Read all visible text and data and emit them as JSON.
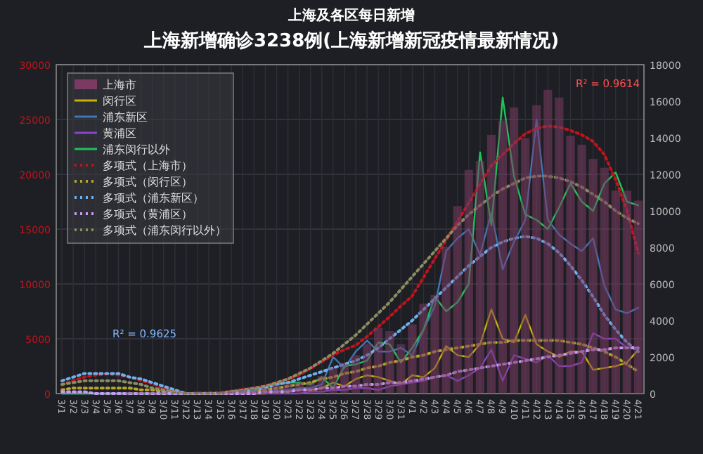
{
  "chart_data": {
    "type": "bar",
    "title": "上海及各区每日新增",
    "annotations": [
      "上海新增确诊3238例(上海新增新冠疫情最新情况)",
      "R² = 0.9614",
      "R² = 0.9625"
    ],
    "categories": [
      "3/1",
      "3/2",
      "3/3",
      "3/4",
      "3/5",
      "3/6",
      "3/7",
      "3/8",
      "3/9",
      "3/10",
      "3/11",
      "3/12",
      "3/13",
      "3/14",
      "3/15",
      "3/16",
      "3/17",
      "3/18",
      "3/19",
      "3/20",
      "3/21",
      "3/22",
      "3/23",
      "3/24",
      "3/25",
      "3/26",
      "3/27",
      "3/28",
      "3/29",
      "3/30",
      "3/31",
      "4/1",
      "4/2",
      "4/3",
      "4/4",
      "4/5",
      "4/6",
      "4/7",
      "4/8",
      "4/9",
      "4/10",
      "4/11",
      "4/12",
      "4/13",
      "4/14",
      "4/15",
      "4/16",
      "4/17",
      "4/18",
      "4/19",
      "4/20",
      "4/21"
    ],
    "series": [
      {
        "name": "上海市",
        "color": "#7a3a62",
        "values": [
          0,
          0,
          0,
          0,
          0,
          0,
          100,
          100,
          100,
          100,
          100,
          100,
          200,
          100,
          200,
          200,
          300,
          400,
          500,
          800,
          900,
          1000,
          1000,
          1600,
          2300,
          2700,
          3500,
          4500,
          6000,
          5700,
          4500,
          6300,
          8200,
          9000,
          13400,
          17100,
          20400,
          21200,
          23600,
          24900,
          26100,
          23300,
          26300,
          27700,
          27000,
          23500,
          22700,
          21400,
          20600,
          18500,
          18500,
          17600
        ]
      },
      {
        "name": "闵行区",
        "type": "line",
        "axis": "y2",
        "color": "#c8b400",
        "values": [
          null,
          null,
          null,
          null,
          null,
          0,
          0,
          0,
          0,
          0,
          0,
          0,
          0,
          0,
          0,
          0,
          0,
          0,
          0,
          100,
          100,
          200,
          200,
          300,
          600,
          400,
          800,
          1000,
          900,
          700,
          500,
          1000,
          900,
          1400,
          2600,
          2100,
          2000,
          2700,
          4600,
          3000,
          2800,
          4300,
          2700,
          2300,
          2000,
          2300,
          2300,
          1300,
          1400,
          1500,
          1700,
          2400
        ]
      },
      {
        "name": "浦东新区",
        "type": "line",
        "axis": "y2",
        "color": "#3f77b8",
        "values": [
          null,
          null,
          null,
          null,
          null,
          null,
          null,
          null,
          null,
          0,
          0,
          0,
          0,
          0,
          0,
          0,
          0,
          100,
          100,
          200,
          200,
          300,
          300,
          500,
          2000,
          1400,
          2300,
          2900,
          2300,
          2300,
          2500,
          2100,
          3500,
          4800,
          7800,
          8500,
          9000,
          7600,
          9900,
          6800,
          8300,
          9500,
          15000,
          9500,
          8700,
          8200,
          7800,
          8500,
          5900,
          4600,
          4400,
          4700
        ]
      },
      {
        "name": "黄浦区",
        "type": "line",
        "axis": "y2",
        "color": "#8a45c8",
        "values": [
          0,
          0,
          0,
          0,
          0,
          0,
          0,
          0,
          0,
          0,
          0,
          0,
          0,
          0,
          0,
          0,
          0,
          0,
          0,
          0,
          0,
          0,
          100,
          100,
          200,
          200,
          300,
          300,
          200,
          400,
          500,
          600,
          700,
          900,
          1000,
          700,
          1000,
          1400,
          2400,
          700,
          2100,
          1900,
          1700,
          2100,
          1500,
          1500,
          1700,
          3300,
          3000,
          3000,
          2500,
          2500
        ]
      },
      {
        "name": "浦东闵行以外",
        "type": "line",
        "axis": "y2",
        "color": "#1fc35c",
        "values": [
          0,
          0,
          0,
          0,
          0,
          0,
          0,
          0,
          0,
          0,
          0,
          0,
          0,
          0,
          0,
          100,
          100,
          200,
          400,
          500,
          600,
          600,
          500,
          900,
          300,
          1500,
          1600,
          1800,
          2800,
          2700,
          1700,
          2500,
          3500,
          5300,
          4500,
          5000,
          6000,
          13200,
          9200,
          16200,
          11900,
          9800,
          9500,
          9000,
          10200,
          11500,
          10500,
          10000,
          11500,
          12100,
          10500,
          10300
        ]
      },
      {
        "name": "多项式（上海市）",
        "type": "line",
        "line_style": "dotted",
        "color": "#c0141c",
        "values": [
          800,
          1200,
          1500,
          1700,
          1800,
          1700,
          1500,
          1200,
          900,
          500,
          200,
          0,
          0,
          100,
          100,
          200,
          400,
          500,
          700,
          1000,
          1300,
          1700,
          2300,
          2900,
          3500,
          4000,
          4400,
          5200,
          6100,
          7000,
          8000,
          8900,
          10600,
          12300,
          14000,
          15700,
          17400,
          19100,
          20800,
          21800,
          22800,
          23700,
          24200,
          24400,
          24300,
          24000,
          23600,
          23000,
          21800,
          19500,
          16700,
          12800
        ]
      },
      {
        "name": "多项式（闵行区）",
        "type": "line",
        "line_style": "dotted",
        "axis": "y2",
        "color": "#b5a62a",
        "values": [
          200,
          300,
          300,
          300,
          300,
          300,
          300,
          200,
          200,
          100,
          100,
          0,
          0,
          0,
          0,
          100,
          100,
          100,
          200,
          300,
          400,
          500,
          600,
          800,
          900,
          1100,
          1200,
          1400,
          1500,
          1700,
          1800,
          2000,
          2100,
          2300,
          2400,
          2500,
          2600,
          2700,
          2800,
          2800,
          2900,
          2900,
          2900,
          2900,
          2900,
          2800,
          2700,
          2500,
          2300,
          2000,
          1600,
          1200
        ]
      },
      {
        "name": "多项式（浦东新区）",
        "type": "line",
        "line_style": "dotted",
        "axis": "y2",
        "color": "#6fb0f0",
        "values": [
          700,
          900,
          1100,
          1100,
          1100,
          1100,
          900,
          800,
          600,
          400,
          200,
          0,
          0,
          0,
          0,
          100,
          100,
          200,
          300,
          500,
          600,
          800,
          1000,
          1200,
          1400,
          1600,
          1800,
          2100,
          2500,
          3000,
          3500,
          4000,
          4600,
          5200,
          5800,
          6400,
          7000,
          7500,
          8000,
          8300,
          8500,
          8600,
          8500,
          8200,
          7700,
          7000,
          6200,
          5300,
          4300,
          3500,
          2800,
          2300
        ]
      },
      {
        "name": "多项式（黄浦区）",
        "type": "line",
        "line_style": "dotted",
        "axis": "y2",
        "color": "#c89af0",
        "values": [
          100,
          100,
          100,
          0,
          0,
          0,
          0,
          0,
          0,
          0,
          0,
          0,
          0,
          0,
          0,
          0,
          0,
          0,
          100,
          100,
          100,
          200,
          200,
          300,
          300,
          400,
          400,
          500,
          500,
          600,
          600,
          700,
          800,
          900,
          1000,
          1200,
          1300,
          1400,
          1500,
          1600,
          1700,
          1800,
          1900,
          2000,
          2100,
          2200,
          2300,
          2400,
          2400,
          2500,
          2500,
          2500
        ]
      },
      {
        "name": "多项式（浦东闵行以外）",
        "type": "line",
        "line_style": "dotted",
        "axis": "y2",
        "color": "#8c8c62",
        "values": [
          500,
          600,
          700,
          700,
          700,
          700,
          600,
          500,
          300,
          200,
          100,
          0,
          0,
          0,
          0,
          100,
          200,
          300,
          400,
          600,
          800,
          1100,
          1400,
          1800,
          2200,
          2700,
          3200,
          3800,
          4400,
          5000,
          5700,
          6400,
          7100,
          7800,
          8500,
          9200,
          9800,
          10300,
          10800,
          11200,
          11500,
          11800,
          11900,
          11900,
          11800,
          11600,
          11300,
          10900,
          10500,
          10000,
          9600,
          9300
        ]
      }
    ],
    "ylim": [
      0,
      30000
    ],
    "yticks": [
      0,
      5000,
      10000,
      15000,
      20000,
      25000,
      30000
    ],
    "y2lim": [
      0,
      18000
    ],
    "y2ticks": [
      0,
      2000,
      4000,
      6000,
      8000,
      10000,
      12000,
      14000,
      16000,
      18000
    ],
    "grid": true,
    "legend": "top left"
  }
}
